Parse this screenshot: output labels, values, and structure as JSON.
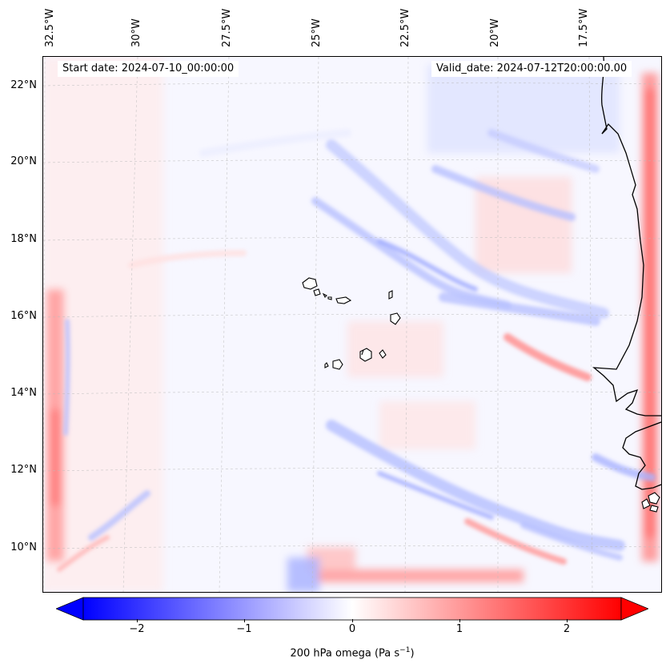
{
  "map": {
    "start_date_label": "Start date: 2024-07-10_00:00:00",
    "valid_date_label": "Valid_date: 2024-07-12T20:00:00.00",
    "longitude_labels": [
      "32.5°W",
      "30°W",
      "27.5°W",
      "25°W",
      "22.5°W",
      "20°W",
      "17.5°W"
    ],
    "latitude_labels": [
      "22°N",
      "20°N",
      "18°N",
      "16°N",
      "14°N",
      "12°N",
      "10°N"
    ],
    "field": "200 hPa omega",
    "colormap": "bwr",
    "colors": {
      "negative": "#0000ff",
      "zero": "#ffffff",
      "positive": "#ff0000",
      "coastline": "#000000",
      "gridlines": "#bbbbbb"
    }
  },
  "colorbar": {
    "label_main": "200 hPa omega (Pa s",
    "label_exp": "−1",
    "label_close": ")",
    "ticks": [
      "−2",
      "−1",
      "0",
      "1",
      "2"
    ],
    "range": [
      -2.6,
      2.6
    ],
    "extend": "both"
  }
}
